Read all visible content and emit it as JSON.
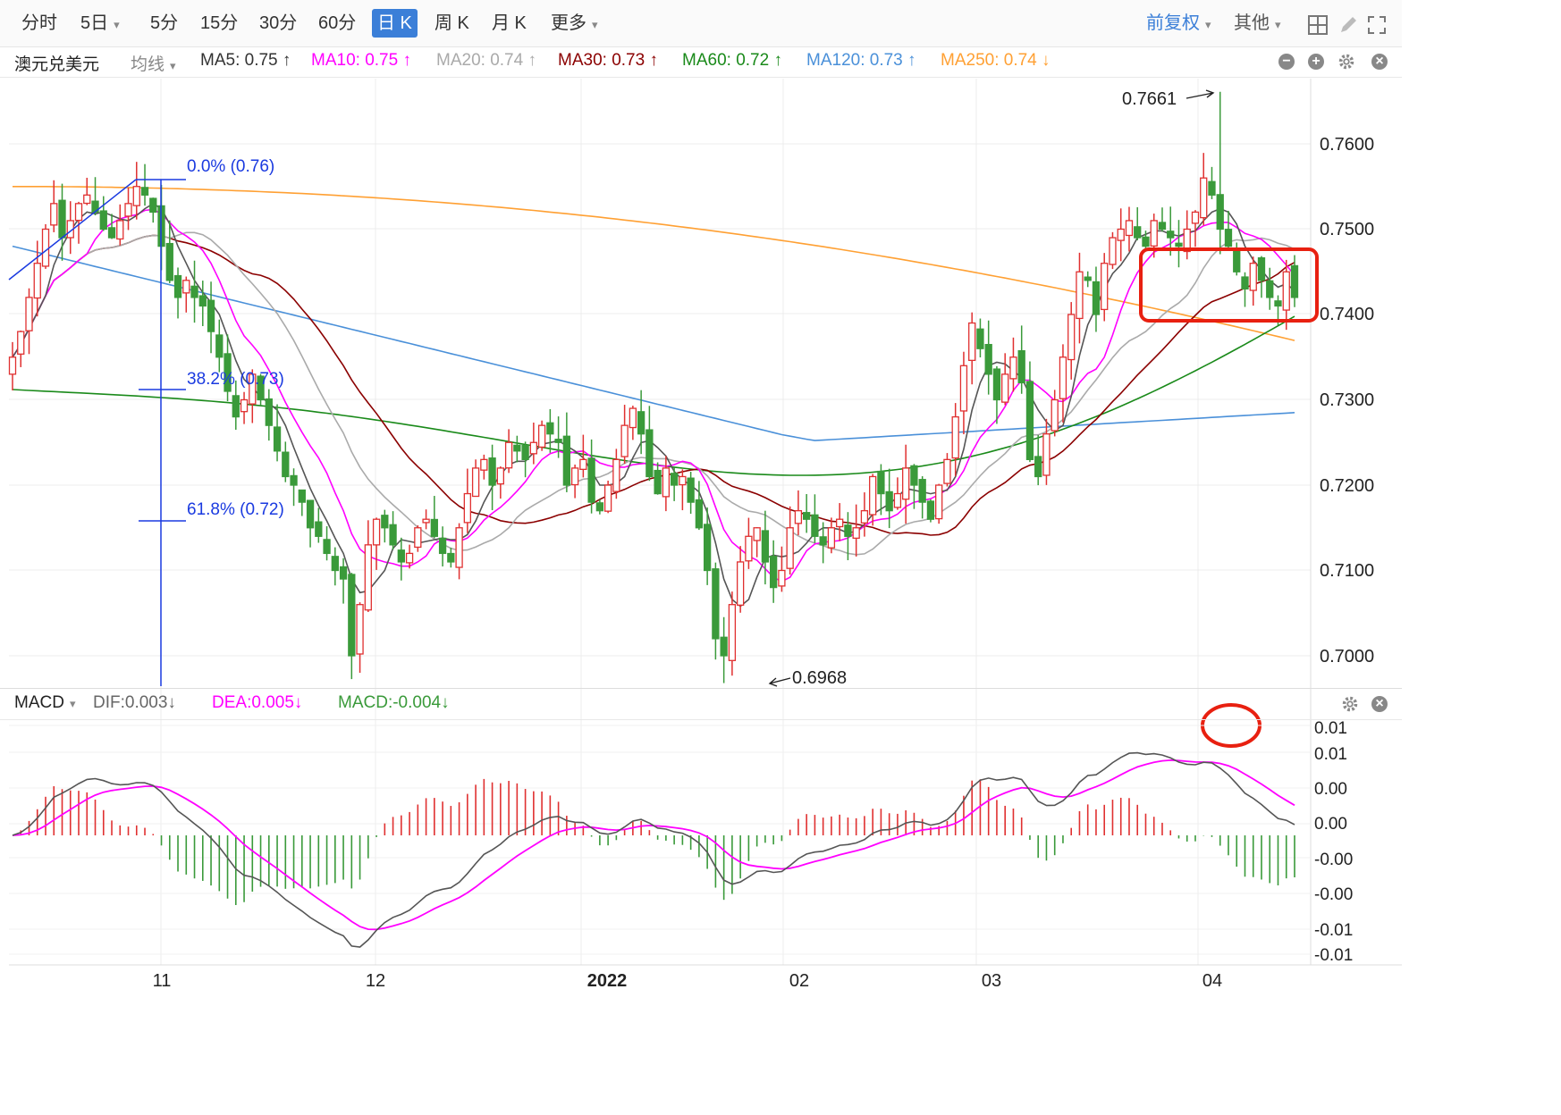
{
  "toolbar": {
    "periods": [
      "分时",
      "5日",
      "5分",
      "15分",
      "30分",
      "60分",
      "日 K",
      "周 K",
      "月 K",
      "更多"
    ],
    "active_period": "日 K",
    "adjust_label": "前复权",
    "other_label": "其他"
  },
  "main_bar": {
    "symbol": "澳元兑美元",
    "indicator": "均线",
    "ma5": "MA5: 0.75 ↑",
    "ma10": "MA10: 0.75 ↑",
    "ma20": "MA20: 0.74 ↑",
    "ma30": "MA30: 0.73 ↑",
    "ma60": "MA60: 0.72 ↑",
    "ma120": "MA120: 0.73 ↑",
    "ma250": "MA250: 0.74 ↓"
  },
  "macd_bar": {
    "name": "MACD",
    "dif": "DIF:0.003↓",
    "dea": "DEA:0.005↓",
    "macd": "MACD:-0.004↓"
  },
  "colors": {
    "up": "#e03030",
    "down": "#3a9a3a",
    "ma5": "#555555",
    "ma10": "#ff00ff",
    "ma20": "#aaaaaa",
    "ma30": "#8b0000",
    "ma60": "#1a8a1a",
    "ma120": "#4a90d9",
    "ma250": "#ffa033",
    "fib": "#1a3ae0",
    "highlight": "#e82010",
    "accent": "#3b7fd8"
  },
  "chart_data": [
    {
      "type": "candlestick",
      "y_ticks": [
        "0.7600",
        "0.7500",
        "0.7400",
        "0.7300",
        "0.7200",
        "0.7100",
        "0.7000"
      ],
      "ylim": [
        0.6968,
        0.7661
      ],
      "x_ticks": [
        "11",
        "12",
        "2022",
        "02",
        "03",
        "04"
      ],
      "annotations": {
        "high": "0.7661",
        "low": "0.6968",
        "fib_0": "0.0% (0.76)",
        "fib_382": "38.2% (0.73)",
        "fib_618": "61.8% (0.72)"
      },
      "closes": [
        0.735,
        0.738,
        0.742,
        0.746,
        0.75,
        0.753,
        0.749,
        0.751,
        0.753,
        0.754,
        0.752,
        0.75,
        0.749,
        0.751,
        0.753,
        0.755,
        0.754,
        0.752,
        0.748,
        0.744,
        0.742,
        0.744,
        0.742,
        0.741,
        0.738,
        0.735,
        0.731,
        0.728,
        0.73,
        0.733,
        0.73,
        0.727,
        0.724,
        0.721,
        0.72,
        0.718,
        0.715,
        0.714,
        0.712,
        0.71,
        0.709,
        0.7,
        0.706,
        0.713,
        0.716,
        0.715,
        0.713,
        0.711,
        0.712,
        0.715,
        0.716,
        0.714,
        0.712,
        0.711,
        0.715,
        0.719,
        0.722,
        0.723,
        0.72,
        0.722,
        0.725,
        0.724,
        0.723,
        0.725,
        0.727,
        0.726,
        0.725,
        0.72,
        0.722,
        0.723,
        0.718,
        0.717,
        0.72,
        0.723,
        0.727,
        0.729,
        0.726,
        0.721,
        0.719,
        0.722,
        0.72,
        0.721,
        0.718,
        0.715,
        0.71,
        0.702,
        0.7,
        0.706,
        0.711,
        0.714,
        0.715,
        0.711,
        0.708,
        0.71,
        0.715,
        0.717,
        0.716,
        0.714,
        0.713,
        0.715,
        0.716,
        0.714,
        0.715,
        0.717,
        0.721,
        0.719,
        0.717,
        0.719,
        0.722,
        0.72,
        0.718,
        0.716,
        0.72,
        0.723,
        0.728,
        0.734,
        0.739,
        0.736,
        0.733,
        0.73,
        0.733,
        0.735,
        0.732,
        0.723,
        0.721,
        0.726,
        0.73,
        0.735,
        0.74,
        0.745,
        0.744,
        0.74,
        0.746,
        0.749,
        0.75,
        0.751,
        0.749,
        0.748,
        0.751,
        0.75,
        0.749,
        0.748,
        0.75,
        0.752,
        0.756,
        0.754,
        0.75,
        0.748,
        0.745,
        0.743,
        0.746,
        0.744,
        0.742,
        0.741,
        0.745,
        0.742
      ]
    },
    {
      "type": "macd",
      "series": [
        {
          "name": "DIF",
          "color": "#555555"
        },
        {
          "name": "DEA",
          "color": "#ff00ff"
        },
        {
          "name": "MACD",
          "color": "#e03030"
        }
      ],
      "y_ticks": [
        "0.01",
        "0.01",
        "0.00",
        "0.00",
        "-0.00",
        "-0.00",
        "-0.01",
        "-0.01"
      ]
    }
  ]
}
